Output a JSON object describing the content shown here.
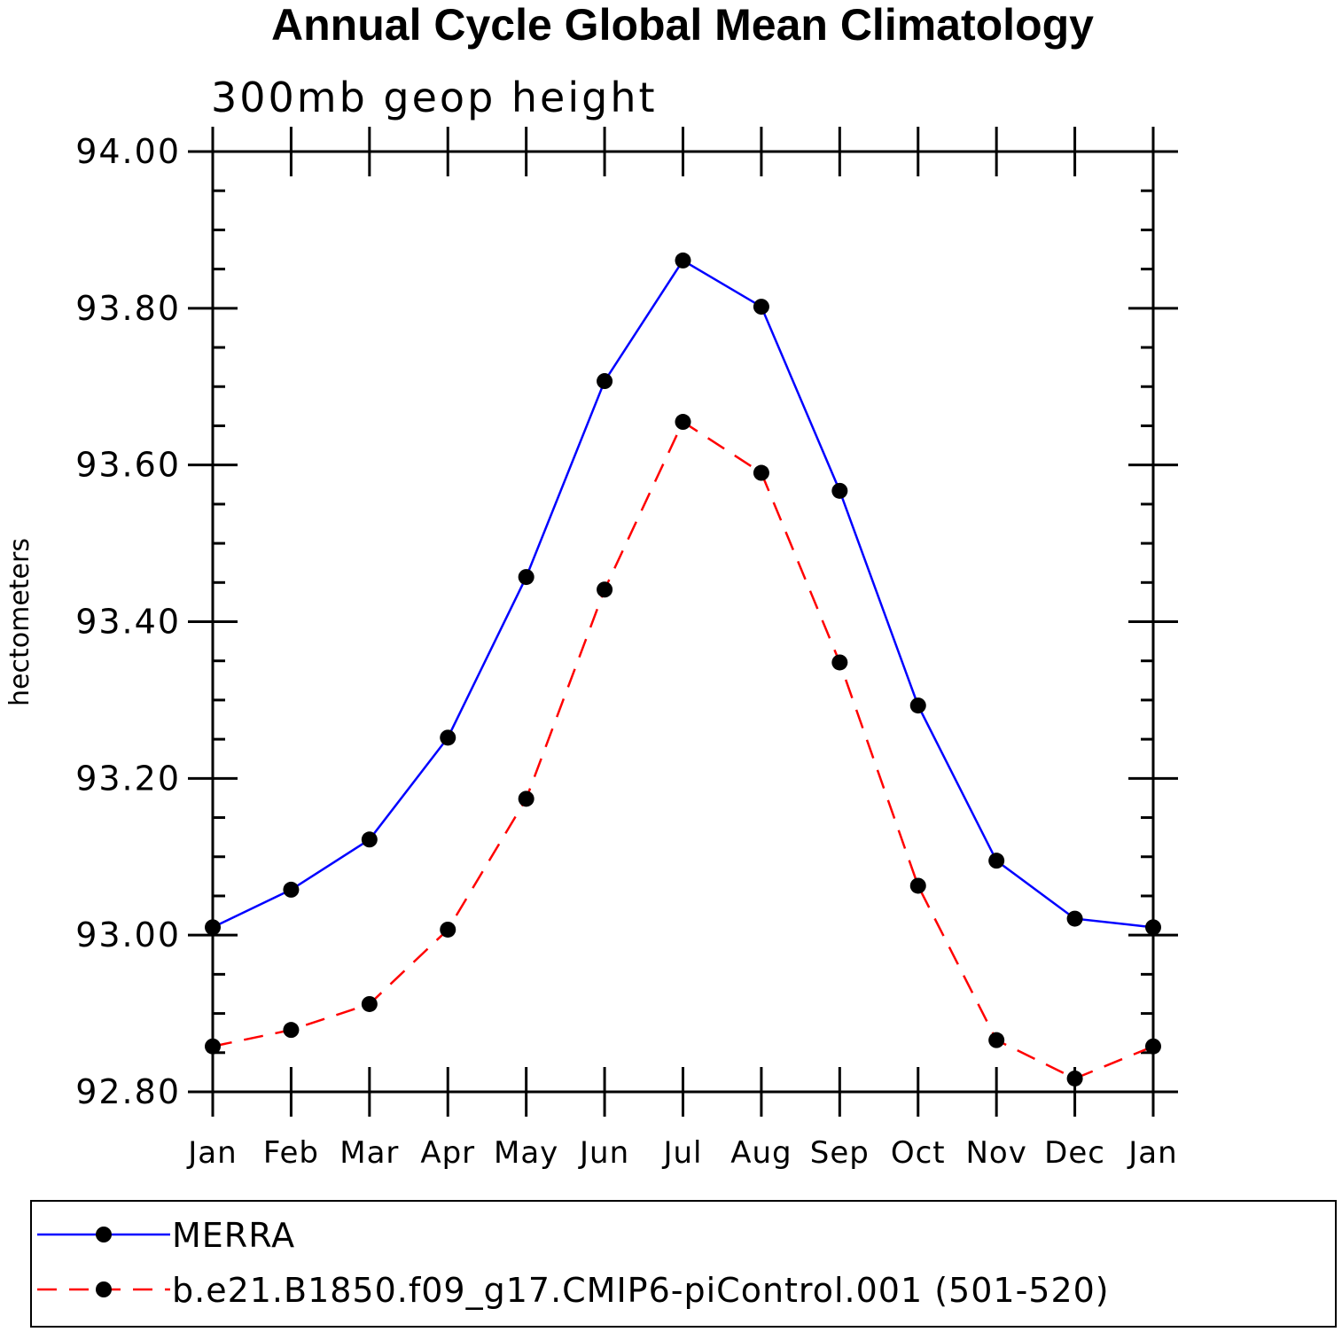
{
  "chart_data": {
    "type": "line",
    "title": "Annual Cycle Global Mean Climatology",
    "subtitle": "300mb geop height",
    "ylabel": "hectometers",
    "xlabel": "",
    "ylim": [
      92.8,
      94.0
    ],
    "yticks": [
      "92.80",
      "93.00",
      "93.20",
      "93.40",
      "93.60",
      "93.80",
      "94.00"
    ],
    "categories": [
      "Jan",
      "Feb",
      "Mar",
      "Apr",
      "May",
      "Jun",
      "Jul",
      "Aug",
      "Sep",
      "Oct",
      "Nov",
      "Dec",
      "Jan"
    ],
    "series": [
      {
        "name": "MERRA",
        "color": "#0000ff",
        "dash": "solid",
        "values": [
          93.01,
          93.058,
          93.122,
          93.252,
          93.457,
          93.707,
          93.861,
          93.802,
          93.567,
          93.293,
          93.095,
          93.021,
          93.01
        ]
      },
      {
        "name": "b.e21.B1850.f09_g17.CMIP6-piControl.001 (501-520)",
        "color": "#ff0000",
        "dash": "dashed",
        "values": [
          92.858,
          92.879,
          92.912,
          93.007,
          93.174,
          93.441,
          93.655,
          93.59,
          93.348,
          93.063,
          92.866,
          92.817,
          92.858
        ]
      }
    ],
    "grid": false,
    "legend_position": "bottom"
  }
}
